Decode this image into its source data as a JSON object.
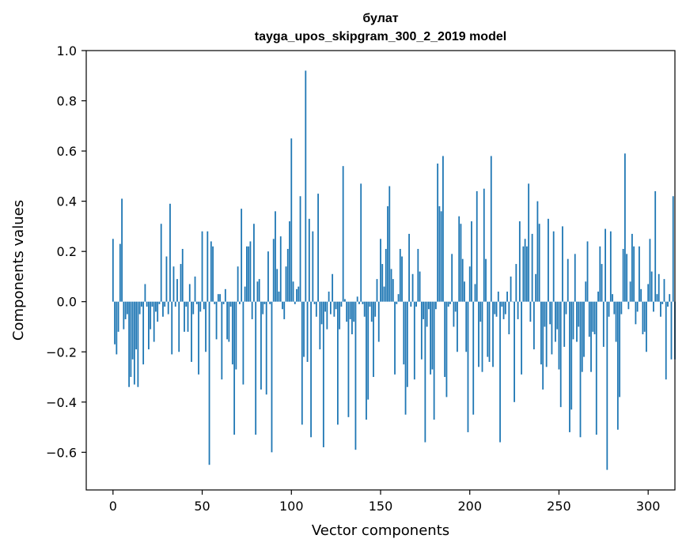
{
  "chart_data": {
    "type": "bar",
    "title": "булат",
    "subtitle": "tayga_upos_skipgram_300_2_2019 model",
    "xlabel": "Vector components",
    "ylabel": "Components values",
    "xlim": [
      -15,
      315
    ],
    "ylim": [
      -0.75,
      1.0
    ],
    "xticks": [
      0,
      50,
      100,
      150,
      200,
      250,
      300
    ],
    "yticks": [
      -0.6,
      -0.4,
      -0.2,
      0.0,
      0.2,
      0.4,
      0.6,
      0.8,
      1.0
    ],
    "xtick_labels": [
      "0",
      "50",
      "100",
      "150",
      "200",
      "250",
      "300"
    ],
    "ytick_labels": [
      "−0.6",
      "−0.4",
      "−0.2",
      "0.0",
      "0.2",
      "0.4",
      "0.6",
      "0.8",
      "1.0"
    ],
    "bar_color": "#1f77b4",
    "grid": false,
    "values": [
      0.25,
      -0.17,
      -0.21,
      -0.12,
      0.23,
      0.41,
      -0.11,
      -0.07,
      -0.05,
      -0.34,
      -0.3,
      -0.23,
      -0.33,
      -0.19,
      -0.34,
      -0.05,
      -0.02,
      -0.25,
      0.07,
      -0.02,
      -0.19,
      -0.11,
      -0.02,
      -0.16,
      -0.04,
      -0.08,
      -0.01,
      0.31,
      -0.06,
      -0.02,
      0.18,
      -0.05,
      0.39,
      -0.21,
      0.14,
      -0.02,
      0.09,
      -0.2,
      0.15,
      0.21,
      -0.12,
      -0.02,
      -0.12,
      0.07,
      -0.24,
      -0.05,
      0.1,
      -0.01,
      -0.29,
      -0.04,
      0.28,
      -0.03,
      -0.2,
      0.28,
      -0.65,
      0.24,
      0.22,
      -0.01,
      -0.15,
      0.03,
      0.03,
      -0.31,
      -0.01,
      0.05,
      -0.15,
      -0.16,
      -0.02,
      -0.25,
      -0.53,
      -0.27,
      0.14,
      -0.01,
      0.37,
      -0.33,
      0.06,
      0.22,
      0.22,
      0.24,
      -0.07,
      0.31,
      -0.53,
      0.08,
      0.09,
      -0.35,
      -0.05,
      -0.01,
      -0.37,
      0.2,
      -0.01,
      -0.6,
      0.25,
      0.36,
      0.13,
      0.04,
      0.26,
      -0.03,
      -0.07,
      0.14,
      0.21,
      0.32,
      0.65,
      0.08,
      -0.01,
      0.05,
      0.06,
      0.42,
      -0.49,
      -0.22,
      0.92,
      -0.24,
      0.33,
      -0.54,
      0.28,
      -0.01,
      -0.06,
      0.43,
      -0.19,
      -0.09,
      -0.58,
      -0.04,
      -0.11,
      0.04,
      -0.05,
      0.11,
      -0.06,
      -0.03,
      -0.49,
      -0.11,
      -0.02,
      0.54,
      0.01,
      -0.08,
      -0.46,
      -0.07,
      -0.13,
      -0.08,
      -0.59,
      0.02,
      -0.01,
      0.47,
      -0.01,
      -0.06,
      -0.47,
      -0.39,
      -0.02,
      -0.08,
      -0.3,
      -0.06,
      0.09,
      -0.16,
      0.25,
      0.15,
      0.06,
      0.21,
      0.38,
      0.46,
      0.13,
      0.09,
      -0.29,
      -0.01,
      0.03,
      0.21,
      0.18,
      -0.25,
      -0.45,
      -0.34,
      0.27,
      -0.02,
      0.11,
      -0.31,
      -0.02,
      0.21,
      0.12,
      -0.23,
      -0.07,
      -0.56,
      -0.1,
      -0.03,
      -0.29,
      -0.27,
      -0.47,
      -0.03,
      0.55,
      0.38,
      0.36,
      0.58,
      -0.3,
      -0.38,
      -0.02,
      -0.01,
      0.19,
      -0.1,
      -0.04,
      -0.2,
      0.34,
      0.31,
      0.17,
      0.08,
      -0.2,
      -0.52,
      0.14,
      0.32,
      -0.45,
      0.07,
      0.44,
      -0.26,
      -0.08,
      -0.28,
      0.45,
      0.17,
      -0.22,
      -0.24,
      0.58,
      -0.26,
      -0.05,
      -0.06,
      0.04,
      -0.56,
      -0.02,
      -0.07,
      -0.05,
      0.04,
      -0.13,
      0.1,
      0.0,
      -0.4,
      0.15,
      -0.07,
      0.32,
      -0.29,
      0.22,
      0.25,
      0.22,
      0.47,
      -0.08,
      0.27,
      -0.19,
      0.11,
      0.4,
      0.31,
      -0.25,
      -0.35,
      -0.1,
      -0.26,
      0.33,
      -0.09,
      -0.21,
      0.28,
      -0.16,
      -0.11,
      -0.27,
      -0.42,
      0.3,
      -0.18,
      -0.05,
      0.17,
      -0.52,
      -0.43,
      -0.15,
      0.19,
      -0.16,
      -0.1,
      -0.54,
      -0.28,
      -0.22,
      0.08,
      0.24,
      -0.14,
      -0.28,
      -0.12,
      -0.13,
      -0.53,
      0.04,
      0.22,
      0.15,
      -0.18,
      0.29,
      -0.67,
      -0.06,
      0.28,
      0.03,
      -0.05,
      -0.16,
      -0.51,
      -0.38,
      -0.05,
      0.21,
      0.59,
      0.19,
      -0.03,
      0.08,
      0.27,
      0.22,
      -0.09,
      -0.04,
      0.22,
      0.05,
      -0.13,
      -0.12,
      -0.2,
      0.07,
      0.25,
      0.12,
      -0.04,
      0.44,
      0.03,
      0.11,
      -0.06,
      -0.01,
      0.09,
      -0.31,
      -0.02,
      0.03,
      -0.23,
      0.42,
      -0.23
    ]
  }
}
